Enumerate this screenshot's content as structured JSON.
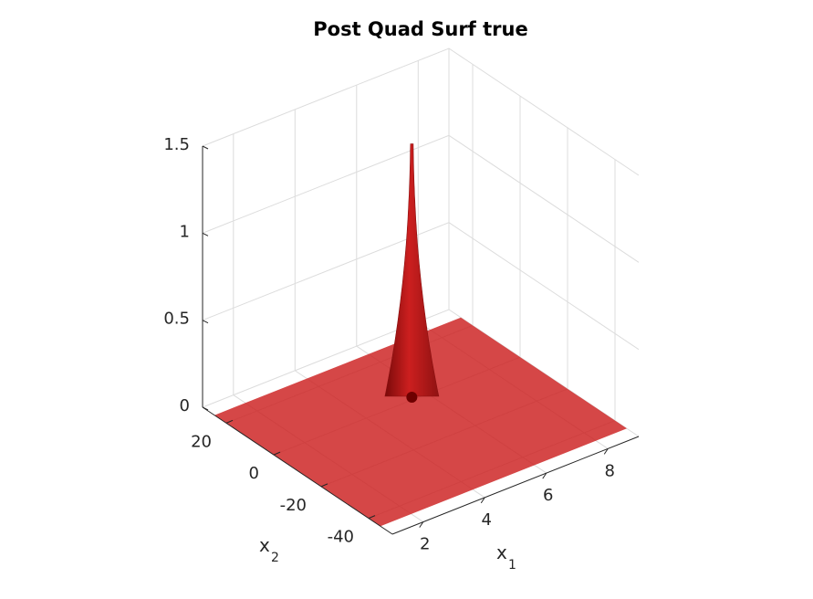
{
  "chart_data": {
    "type": "surface3d",
    "title": "Post Quad Surf true",
    "xlabel": "x",
    "xlabel_sub": "1",
    "ylabel": "x",
    "ylabel_sub": "2",
    "zlabel": "",
    "xlim": [
      1,
      9
    ],
    "ylim": [
      -50,
      30
    ],
    "zlim": [
      0,
      1.5
    ],
    "x_ticks": [
      2,
      4,
      6,
      8
    ],
    "y_ticks": [
      20,
      0,
      -20,
      -40
    ],
    "z_ticks": [
      0,
      0.5,
      1,
      1.5
    ],
    "x_tick_labels": [
      "2",
      "4",
      "6",
      "8"
    ],
    "y_tick_labels": [
      "20",
      "0",
      "-20",
      "-40"
    ],
    "z_tick_labels": [
      "0",
      "0.5",
      "1",
      "1.5"
    ],
    "grid": true,
    "surface_color": "#cc1f1f",
    "peak": {
      "x": 5.6,
      "y": 1.5,
      "z": 1.45
    },
    "marker": {
      "x": 5.6,
      "y": 1.5,
      "z": 0,
      "color": "#6e0000"
    }
  }
}
